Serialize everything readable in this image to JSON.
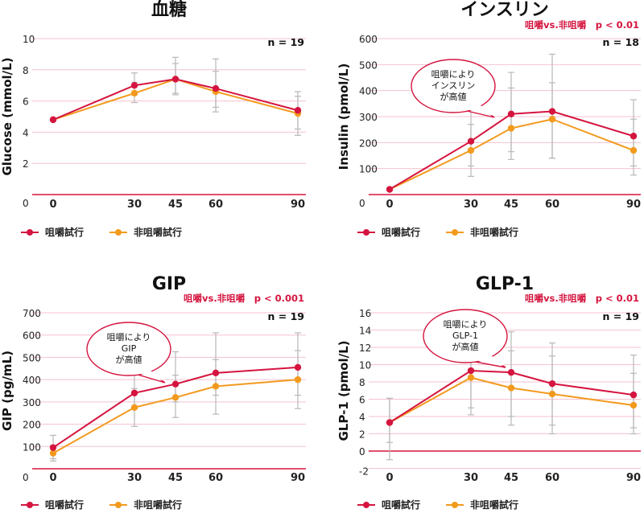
{
  "colors": {
    "chewing": "#d5143f",
    "non_chewing": "#f39a1e",
    "grid": "#f4c2cf",
    "zero_line": "#d5143f",
    "error_bar": "#b8b8b8"
  },
  "chart_data": [
    {
      "type": "line",
      "title": "血糖",
      "ylabel": "Glucose (mmol/L)",
      "n_label": "n = 19",
      "significance": "",
      "callout": [],
      "x": [
        0,
        30,
        45,
        60,
        90
      ],
      "x_ticks": [
        "0",
        "30",
        "45",
        "60",
        "90"
      ],
      "ylim": [
        0,
        10
      ],
      "y_ticks": [
        0,
        2,
        4,
        6,
        8,
        10
      ],
      "series": [
        {
          "name": "咀嚼試行",
          "values": [
            4.8,
            7.0,
            7.4,
            6.8,
            5.4
          ],
          "err_low": [
            4.8,
            6.4,
            6.5,
            5.6,
            4.2
          ],
          "err_high": [
            4.8,
            7.8,
            8.8,
            8.7,
            6.6
          ]
        },
        {
          "name": "非咀嚼試行",
          "values": [
            4.8,
            6.5,
            7.4,
            6.6,
            5.2
          ],
          "err_low": [
            4.8,
            5.9,
            6.4,
            5.3,
            3.8
          ],
          "err_high": [
            4.8,
            7.2,
            8.4,
            7.9,
            6.3
          ]
        }
      ]
    },
    {
      "type": "line",
      "title": "インスリン",
      "ylabel": "Insulin (pmol/L)",
      "n_label": "n = 18",
      "significance": "咀嚼vs.非咀嚼　p < 0.01",
      "callout": [
        "咀嚼により",
        "インスリン",
        "が高値"
      ],
      "x": [
        0,
        30,
        45,
        60,
        90
      ],
      "x_ticks": [
        "0",
        "30",
        "45",
        "60",
        "90"
      ],
      "ylim": [
        0,
        600
      ],
      "y_ticks": [
        0,
        100,
        200,
        300,
        400,
        500,
        600
      ],
      "series": [
        {
          "name": "咀嚼試行",
          "values": [
            20,
            205,
            310,
            320,
            225
          ],
          "err_low": [
            20,
            110,
            165,
            140,
            110
          ],
          "err_high": [
            20,
            340,
            470,
            540,
            365
          ]
        },
        {
          "name": "非咀嚼試行",
          "values": [
            20,
            170,
            255,
            290,
            170
          ],
          "err_low": [
            20,
            70,
            135,
            140,
            75
          ],
          "err_high": [
            20,
            270,
            410,
            430,
            290
          ]
        }
      ]
    },
    {
      "type": "line",
      "title": "GIP",
      "ylabel": "GIP (pg/mL)",
      "n_label": "n = 19",
      "significance": "咀嚼vs.非咀嚼　p < 0.001",
      "callout": [
        "咀嚼により",
        "GIP",
        "が高値"
      ],
      "x": [
        0,
        30,
        45,
        60,
        90
      ],
      "x_ticks": [
        "0",
        "30",
        "45",
        "60",
        "90"
      ],
      "ylim": [
        0,
        700
      ],
      "y_ticks": [
        0,
        100,
        200,
        300,
        400,
        500,
        600,
        700
      ],
      "series": [
        {
          "name": "咀嚼試行",
          "values": [
            95,
            340,
            380,
            430,
            455
          ],
          "err_low": [
            45,
            270,
            300,
            330,
            330
          ],
          "err_high": [
            150,
            420,
            525,
            610,
            610
          ]
        },
        {
          "name": "非咀嚼試行",
          "values": [
            70,
            275,
            320,
            370,
            400
          ],
          "err_low": [
            35,
            190,
            230,
            245,
            270
          ],
          "err_high": [
            105,
            360,
            420,
            490,
            530
          ]
        }
      ]
    },
    {
      "type": "line",
      "title": "GLP-1",
      "ylabel": "GLP-1 (pmol/L)",
      "n_label": "n = 19",
      "significance": "咀嚼vs.非咀嚼　p < 0.01",
      "callout": [
        "咀嚼により",
        "GLP-1",
        "が高値"
      ],
      "x": [
        0,
        30,
        45,
        60,
        90
      ],
      "x_ticks": [
        "0",
        "30",
        "45",
        "60",
        "90"
      ],
      "ylim": [
        -2,
        16
      ],
      "y_ticks": [
        -2,
        0,
        2,
        4,
        6,
        8,
        10,
        12,
        14,
        16
      ],
      "series": [
        {
          "name": "咀嚼試行",
          "values": [
            3.3,
            9.3,
            9.1,
            7.8,
            6.5
          ],
          "err_low": [
            1.0,
            5.0,
            4.0,
            3.0,
            2.7
          ],
          "err_high": [
            6.1,
            12.0,
            13.8,
            12.5,
            11.1
          ]
        },
        {
          "name": "非咀嚼試行",
          "values": [
            3.3,
            8.5,
            7.3,
            6.6,
            5.3
          ],
          "err_low": [
            -1.0,
            4.2,
            3.0,
            2.0,
            2.0
          ],
          "err_high": [
            6.1,
            12.8,
            11.6,
            11.0,
            9.0
          ]
        }
      ]
    }
  ]
}
